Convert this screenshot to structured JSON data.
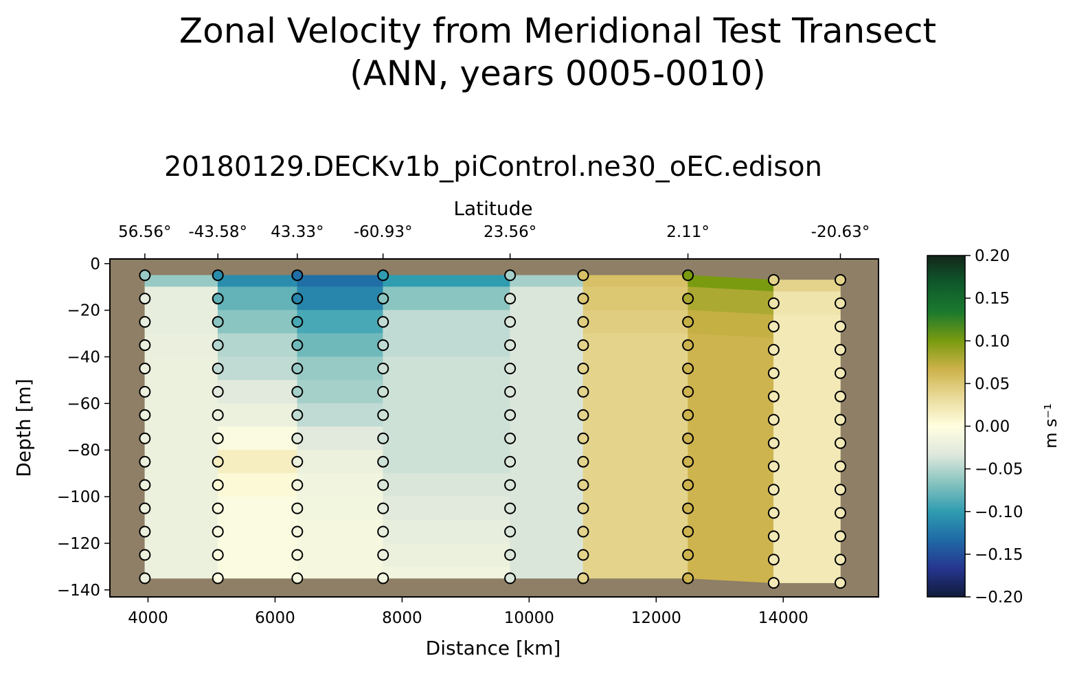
{
  "figure": {
    "suptitle_line1": "Zonal Velocity from Meridional Test Transect",
    "suptitle_line2": "(ANN, years 0005-0010)",
    "title": "20180129.DECKv1b_piControl.ne30_oEC.edison"
  },
  "chart_data": {
    "type": "heatmap",
    "title": "20180129.DECKv1b_piControl.ne30_oEC.edison",
    "xlabel": "Distance [km]",
    "ylabel": "Depth [m]",
    "top_xlabel": "Latitude",
    "xlim": [
      3400,
      15500
    ],
    "ylim": [
      -143,
      2
    ],
    "x_ticks": [
      4000,
      6000,
      8000,
      10000,
      12000,
      14000
    ],
    "y_ticks": [
      0,
      -20,
      -40,
      -60,
      -80,
      -100,
      -120,
      -140
    ],
    "x_tick_labels": [
      "4000",
      "6000",
      "8000",
      "10000",
      "12000",
      "14000"
    ],
    "y_tick_labels": [
      "0",
      "−20",
      "−40",
      "−60",
      "−80",
      "−100",
      "−120",
      "−140"
    ],
    "latitude_ticks": [
      {
        "x": 3950,
        "label": "56.56°"
      },
      {
        "x": 5100,
        "label": "-43.58°"
      },
      {
        "x": 6350,
        "label": "43.33°"
      },
      {
        "x": 7700,
        "label": "-60.93°"
      },
      {
        "x": 9700,
        "label": "23.56°"
      },
      {
        "x": 12500,
        "label": "2.11°"
      },
      {
        "x": 14900,
        "label": "-20.63°"
      }
    ],
    "colorbar": {
      "label": "m s⁻¹",
      "vmin": -0.2,
      "vmax": 0.2,
      "ticks": [
        0.2,
        0.15,
        0.1,
        0.05,
        0.0,
        -0.05,
        -0.1,
        -0.15,
        -0.2
      ],
      "tick_labels": [
        "0.20",
        "0.15",
        "0.10",
        "0.05",
        "0.00",
        "−0.05",
        "−0.10",
        "−0.15",
        "−0.20"
      ],
      "stops": [
        "#101b3a",
        "#27358f",
        "#1f6aa6",
        "#2f9cb0",
        "#86c3bf",
        "#dfe8dd",
        "#fffee0",
        "#eadb9b",
        "#cdb24a",
        "#7a9b10",
        "#1c7a2e",
        "#0f5a2c",
        "#13261a"
      ],
      "cmap": "diff_colormap"
    },
    "land_color": "#8e7f66",
    "columns": [
      {
        "x": 3950,
        "depths": [
          -5,
          -15,
          -25,
          -35,
          -45,
          -55,
          -65,
          -75,
          -85,
          -95,
          -105,
          -115,
          -125,
          -135
        ],
        "values": [
          -0.06,
          -0.025,
          -0.025,
          -0.022,
          -0.02,
          -0.02,
          -0.02,
          -0.02,
          -0.02,
          -0.02,
          -0.02,
          -0.02,
          -0.02,
          -0.02
        ]
      },
      {
        "x": 5100,
        "depths": [
          -5,
          -15,
          -25,
          -35,
          -45,
          -55,
          -65,
          -75,
          -85,
          -95,
          -105,
          -115,
          -125,
          -135
        ],
        "values": [
          -0.11,
          -0.08,
          -0.065,
          -0.05,
          -0.045,
          -0.03,
          -0.02,
          -0.005,
          0.015,
          0.005,
          -0.005,
          -0.005,
          -0.005,
          -0.005
        ]
      },
      {
        "x": 6350,
        "depths": [
          -5,
          -15,
          -25,
          -35,
          -45,
          -55,
          -65,
          -75,
          -85,
          -95,
          -105,
          -115,
          -125,
          -135
        ],
        "values": [
          -0.13,
          -0.115,
          -0.09,
          -0.075,
          -0.06,
          -0.055,
          -0.045,
          -0.03,
          -0.02,
          -0.015,
          -0.012,
          -0.01,
          -0.01,
          -0.01
        ]
      },
      {
        "x": 7700,
        "depths": [
          -5,
          -15,
          -25,
          -35,
          -45,
          -55,
          -65,
          -75,
          -85,
          -95,
          -105,
          -115,
          -125,
          -135
        ],
        "values": [
          -0.1,
          -0.065,
          -0.045,
          -0.045,
          -0.04,
          -0.04,
          -0.04,
          -0.04,
          -0.04,
          -0.035,
          -0.03,
          -0.025,
          -0.02,
          -0.015
        ]
      },
      {
        "x": 9700,
        "depths": [
          -5,
          -15,
          -25,
          -35,
          -45,
          -55,
          -65,
          -75,
          -85,
          -95,
          -105,
          -115,
          -125,
          -135
        ],
        "values": [
          -0.055,
          -0.035,
          -0.035,
          -0.035,
          -0.035,
          -0.035,
          -0.035,
          -0.035,
          -0.035,
          -0.035,
          -0.035,
          -0.035,
          -0.035,
          -0.035
        ]
      },
      {
        "x": 10850,
        "depths": [
          -5,
          -15,
          -25,
          -35,
          -45,
          -55,
          -65,
          -75,
          -85,
          -95,
          -105,
          -115,
          -125,
          -135
        ],
        "values": [
          0.055,
          0.05,
          0.045,
          0.04,
          0.04,
          0.04,
          0.04,
          0.04,
          0.04,
          0.04,
          0.04,
          0.04,
          0.04,
          0.04
        ]
      },
      {
        "x": 12500,
        "depths": [
          -5,
          -15,
          -25,
          -35,
          -45,
          -55,
          -65,
          -75,
          -85,
          -95,
          -105,
          -115,
          -125,
          -135
        ],
        "values": [
          0.1,
          0.08,
          0.07,
          0.065,
          0.065,
          0.065,
          0.065,
          0.065,
          0.065,
          0.065,
          0.065,
          0.065,
          0.065,
          0.065
        ]
      },
      {
        "x": 13850,
        "depths": [
          -7,
          -17,
          -27,
          -37,
          -47,
          -57,
          -67,
          -77,
          -87,
          -97,
          -107,
          -117,
          -127,
          -137
        ],
        "values": [
          0.04,
          0.025,
          0.02,
          0.02,
          0.02,
          0.02,
          0.02,
          0.02,
          0.02,
          0.02,
          0.02,
          0.02,
          0.02,
          0.02
        ]
      },
      {
        "x": 14900,
        "depths": [
          -7,
          -17,
          -27,
          -37,
          -47,
          -57,
          -67,
          -77,
          -87,
          -97,
          -107,
          -117,
          -127,
          -137
        ],
        "values": [
          0.04,
          0.025,
          0.02,
          0.02,
          0.02,
          0.02,
          0.02,
          0.02,
          0.02,
          0.02,
          0.02,
          0.02,
          0.02,
          0.02
        ]
      }
    ]
  }
}
